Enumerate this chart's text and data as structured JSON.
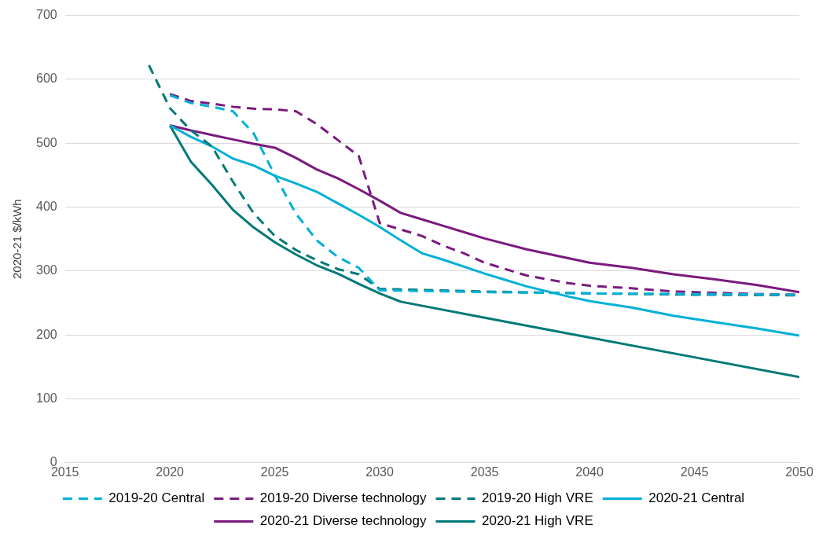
{
  "chart_data": {
    "type": "line",
    "ylabel": "2020-21 $/kWh",
    "xlim": [
      2015,
      2050
    ],
    "xticks": [
      2015,
      2020,
      2025,
      2030,
      2035,
      2040,
      2045,
      2050
    ],
    "ylim": [
      0,
      700
    ],
    "yticks": [
      0,
      100,
      200,
      300,
      400,
      500,
      600,
      700
    ],
    "grid": "y",
    "legend": "bottom",
    "marker": "none",
    "series": [
      {
        "name": "2019-20 Central",
        "color": "#00b0d8",
        "line_style": "dashed",
        "x": [
          2020,
          2021,
          2022,
          2023,
          2024,
          2025,
          2026,
          2027,
          2028,
          2029,
          2030,
          2035,
          2040,
          2045,
          2050
        ],
        "values": [
          575,
          563,
          557,
          550,
          515,
          450,
          390,
          348,
          322,
          305,
          270,
          267,
          265,
          264,
          263
        ]
      },
      {
        "name": "2019-20 Diverse technology",
        "color": "#7b1a7e",
        "line_style": "dashed",
        "x": [
          2020,
          2021,
          2022,
          2023,
          2024,
          2025,
          2026,
          2027,
          2028,
          2029,
          2030,
          2031,
          2032,
          2033,
          2034,
          2035,
          2036,
          2037,
          2038,
          2039,
          2040,
          2042,
          2044,
          2046,
          2048,
          2050
        ],
        "values": [
          577,
          566,
          562,
          557,
          554,
          553,
          550,
          530,
          505,
          480,
          375,
          365,
          355,
          340,
          328,
          313,
          303,
          293,
          287,
          281,
          277,
          273,
          268,
          266,
          264,
          263
        ]
      },
      {
        "name": "2019-20 High VRE",
        "color": "#007a78",
        "line_style": "dashed",
        "x": [
          2019,
          2020,
          2021,
          2022,
          2023,
          2024,
          2025,
          2026,
          2027,
          2028,
          2029,
          2030,
          2035,
          2040,
          2045,
          2050
        ],
        "values": [
          622,
          555,
          520,
          495,
          440,
          390,
          355,
          333,
          317,
          303,
          295,
          272,
          268,
          265,
          263,
          262
        ]
      },
      {
        "name": "2020-21 Central",
        "color": "#00b0d8",
        "line_style": "solid",
        "x": [
          2020,
          2021,
          2022,
          2023,
          2024,
          2025,
          2026,
          2027,
          2028,
          2029,
          2030,
          2031,
          2032,
          2033,
          2034,
          2035,
          2036,
          2037,
          2038,
          2039,
          2040,
          2042,
          2044,
          2046,
          2048,
          2050
        ],
        "values": [
          528,
          510,
          495,
          476,
          465,
          449,
          437,
          424,
          406,
          388,
          369,
          348,
          328,
          318,
          307,
          296,
          286,
          276,
          268,
          260,
          253,
          243,
          230,
          220,
          210,
          199
        ]
      },
      {
        "name": "2020-21 Diverse technology",
        "color": "#7b1a7e",
        "line_style": "solid",
        "x": [
          2020,
          2021,
          2022,
          2023,
          2024,
          2025,
          2026,
          2027,
          2028,
          2029,
          2030,
          2031,
          2032,
          2033,
          2034,
          2035,
          2037,
          2040,
          2042,
          2044,
          2046,
          2048,
          2050
        ],
        "values": [
          528,
          520,
          513,
          506,
          499,
          493,
          477,
          459,
          445,
          428,
          410,
          391,
          381,
          371,
          361,
          351,
          334,
          313,
          305,
          295,
          287,
          278,
          267
        ]
      },
      {
        "name": "2020-21 High VRE",
        "color": "#007a78",
        "line_style": "solid",
        "x": [
          2020,
          2021,
          2022,
          2023,
          2024,
          2025,
          2026,
          2027,
          2028,
          2029,
          2030,
          2031,
          2035,
          2040,
          2045,
          2050
        ],
        "values": [
          528,
          471,
          435,
          396,
          368,
          345,
          326,
          309,
          296,
          280,
          265,
          252,
          227,
          196,
          165,
          134
        ]
      }
    ]
  }
}
